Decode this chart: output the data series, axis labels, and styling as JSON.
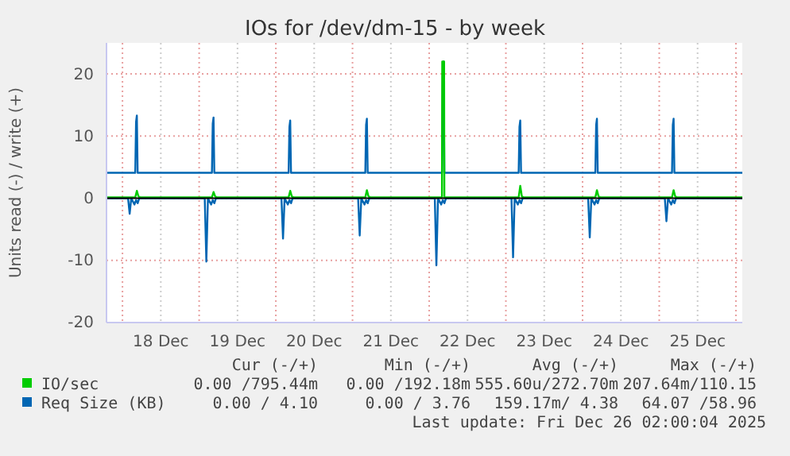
{
  "chart_data": {
    "type": "line",
    "title": "IOs for /dev/dm-15 - by week",
    "ylabel": "Units read (-) / write (+)",
    "xlim": [
      "2025-12-17T19:00",
      "2025-12-26T02:00"
    ],
    "xticks": [
      {
        "value": "2025-12-18T00:00",
        "label": null
      },
      {
        "value": "2025-12-18T12:00",
        "label": "18 Dec"
      },
      {
        "value": "2025-12-19T00:00",
        "label": null
      },
      {
        "value": "2025-12-19T12:00",
        "label": "19 Dec"
      },
      {
        "value": "2025-12-20T00:00",
        "label": null
      },
      {
        "value": "2025-12-20T12:00",
        "label": "20 Dec"
      },
      {
        "value": "2025-12-21T00:00",
        "label": null
      },
      {
        "value": "2025-12-21T12:00",
        "label": "21 Dec"
      },
      {
        "value": "2025-12-22T00:00",
        "label": null
      },
      {
        "value": "2025-12-22T12:00",
        "label": "22 Dec"
      },
      {
        "value": "2025-12-23T00:00",
        "label": null
      },
      {
        "value": "2025-12-23T12:00",
        "label": "23 Dec"
      },
      {
        "value": "2025-12-24T00:00",
        "label": null
      },
      {
        "value": "2025-12-24T12:00",
        "label": "24 Dec"
      },
      {
        "value": "2025-12-25T00:00",
        "label": null
      },
      {
        "value": "2025-12-25T12:00",
        "label": "25 Dec"
      },
      {
        "value": "2025-12-26T00:00",
        "label": null
      }
    ],
    "ylim": [
      -20,
      25
    ],
    "yticks": [
      -20,
      -10,
      0,
      10,
      20
    ],
    "grid": true,
    "legend": "bottom",
    "marker": "none",
    "line_style": "solid",
    "ref_lines": [
      {
        "axis": "y",
        "value": 0,
        "color": "#000000"
      }
    ],
    "series": [
      {
        "name": "Req Size (KB)",
        "color": "#0066b3",
        "x": [
          "2025-12-17T19:00",
          "2025-12-18T04:00",
          "2025-12-18T04:15",
          "2025-12-18T04:30",
          "2025-12-18T04:45",
          "2025-12-19T04:00",
          "2025-12-19T04:15",
          "2025-12-19T04:30",
          "2025-12-19T04:45",
          "2025-12-20T04:00",
          "2025-12-20T04:15",
          "2025-12-20T04:30",
          "2025-12-20T04:45",
          "2025-12-21T04:00",
          "2025-12-21T04:15",
          "2025-12-21T04:30",
          "2025-12-21T04:45",
          "2025-12-22T04:00",
          "2025-12-22T04:15",
          "2025-12-22T04:30",
          "2025-12-22T04:45",
          "2025-12-23T04:00",
          "2025-12-23T04:15",
          "2025-12-23T04:30",
          "2025-12-23T04:45",
          "2025-12-24T04:00",
          "2025-12-24T04:15",
          "2025-12-24T04:30",
          "2025-12-24T04:45",
          "2025-12-25T04:00",
          "2025-12-25T04:15",
          "2025-12-25T04:30",
          "2025-12-25T04:45",
          "2025-12-26T02:00"
        ],
        "values": [
          4.1,
          4.1,
          12.3,
          13.3,
          4.1,
          4.1,
          12,
          13,
          4.1,
          4.1,
          11.5,
          12.5,
          4.1,
          4.1,
          11.8,
          12.8,
          4.1,
          4.1,
          20,
          22,
          4.1,
          4.1,
          11.5,
          12.5,
          4.1,
          4.1,
          11.8,
          12.8,
          4.1,
          4.1,
          11.8,
          12.8,
          4.1,
          4.1
        ]
      },
      {
        "color": "#0066b3",
        "x": [
          "2025-12-17T19:00",
          "2025-12-18T01:45",
          "2025-12-18T02:15",
          "2025-12-18T02:45",
          "2025-12-18T03:45",
          "2025-12-18T04:15",
          "2025-12-18T04:45",
          "2025-12-18T05:15",
          "2025-12-19T01:45",
          "2025-12-19T02:15",
          "2025-12-19T02:45",
          "2025-12-19T03:45",
          "2025-12-19T04:15",
          "2025-12-19T04:45",
          "2025-12-19T05:15",
          "2025-12-20T01:45",
          "2025-12-20T02:15",
          "2025-12-20T02:45",
          "2025-12-20T03:45",
          "2025-12-20T04:15",
          "2025-12-20T04:45",
          "2025-12-20T05:15",
          "2025-12-21T01:45",
          "2025-12-21T02:15",
          "2025-12-21T02:45",
          "2025-12-21T03:45",
          "2025-12-21T04:15",
          "2025-12-21T04:45",
          "2025-12-21T05:15",
          "2025-12-22T01:45",
          "2025-12-22T02:15",
          "2025-12-22T02:45",
          "2025-12-22T03:45",
          "2025-12-22T04:15",
          "2025-12-22T04:45",
          "2025-12-22T05:15",
          "2025-12-23T01:45",
          "2025-12-23T02:15",
          "2025-12-23T02:45",
          "2025-12-23T03:45",
          "2025-12-23T04:15",
          "2025-12-23T04:45",
          "2025-12-23T05:15",
          "2025-12-24T01:45",
          "2025-12-24T02:15",
          "2025-12-24T02:45",
          "2025-12-24T03:45",
          "2025-12-24T04:15",
          "2025-12-24T04:45",
          "2025-12-24T05:15",
          "2025-12-25T01:45",
          "2025-12-25T02:15",
          "2025-12-25T02:45",
          "2025-12-25T03:45",
          "2025-12-25T04:15",
          "2025-12-25T04:45",
          "2025-12-25T05:15",
          "2025-12-26T02:00"
        ],
        "values": [
          0,
          0,
          -2.5,
          0,
          -1,
          -0.3,
          -0.8,
          0,
          0,
          -10.2,
          0,
          -1,
          -0.3,
          -0.8,
          0,
          0,
          -6.5,
          0,
          -1,
          -0.3,
          -0.8,
          0,
          0,
          -6,
          0,
          -1,
          -0.3,
          -0.8,
          0,
          0,
          -10.8,
          0,
          -1,
          -0.3,
          -0.8,
          0,
          0,
          -9.5,
          0,
          -1,
          -0.3,
          -0.8,
          0,
          0,
          -6.3,
          0,
          -1,
          -0.3,
          -0.8,
          0,
          0,
          -3.7,
          0,
          -1,
          -0.3,
          -0.8,
          0,
          0
        ]
      },
      {
        "name": "IO/sec",
        "color": "#00cc00",
        "x": [
          "2025-12-17T19:00",
          "2025-12-18T04:00",
          "2025-12-18T04:30",
          "2025-12-18T05:00",
          "2025-12-18T05:30",
          "2025-12-19T04:00",
          "2025-12-19T04:30",
          "2025-12-19T05:00",
          "2025-12-19T05:30",
          "2025-12-20T04:00",
          "2025-12-20T04:30",
          "2025-12-20T05:00",
          "2025-12-20T05:30",
          "2025-12-21T04:00",
          "2025-12-21T04:30",
          "2025-12-21T05:00",
          "2025-12-21T05:30",
          "2025-12-22T04:00",
          "2025-12-22T04:05",
          "2025-12-22T04:40",
          "2025-12-22T04:45",
          "2025-12-23T04:00",
          "2025-12-23T04:30",
          "2025-12-23T05:00",
          "2025-12-23T05:30",
          "2025-12-24T04:00",
          "2025-12-24T04:30",
          "2025-12-24T05:00",
          "2025-12-24T05:30",
          "2025-12-25T04:00",
          "2025-12-25T04:30",
          "2025-12-25T05:00",
          "2025-12-25T05:30",
          "2025-12-26T02:00"
        ],
        "values": [
          0.15,
          0.15,
          1.2,
          0.3,
          0.15,
          0.15,
          1,
          0.3,
          0.15,
          0.15,
          1.2,
          0.3,
          0.15,
          0.15,
          1.3,
          0.3,
          0.15,
          0.15,
          22,
          22,
          0.15,
          0.15,
          2,
          0.3,
          0.15,
          0.15,
          1.3,
          0.3,
          0.15,
          0.15,
          1.3,
          0.3,
          0.15,
          0.15
        ]
      }
    ],
    "annotations": [
      "Cur (-/+)",
      "Min (-/+)",
      "Avg (-/+)",
      "Max (-/+)",
      "0.00 /795.44m",
      "0.00 /192.18m",
      "555.60u/272.70m",
      "207.64m/110.15",
      "0.00 / 4.10",
      "0.00 / 3.76",
      "159.17m/ 4.38",
      "64.07 /58.96",
      "Last update: Fri Dec 26 02:00:04 2025"
    ]
  }
}
